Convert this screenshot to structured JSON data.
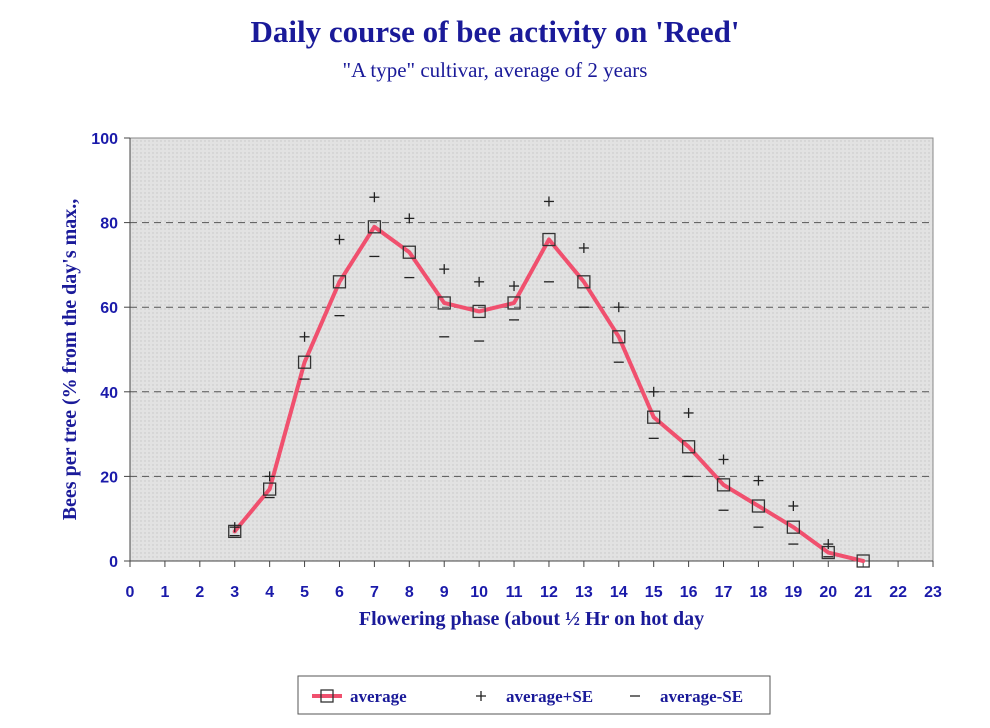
{
  "chart_data": {
    "type": "line",
    "title": "Daily course of bee activity on 'Reed'",
    "subtitle": "\"A type\" cultivar, average of 2 years",
    "xlabel": "Flowering phase (about ½ Hr on hot day",
    "ylabel": "Bees per tree (% from the day's max.,",
    "xlim": [
      0,
      23
    ],
    "ylim": [
      0,
      100
    ],
    "x_ticks": [
      0,
      1,
      2,
      3,
      4,
      5,
      6,
      7,
      8,
      9,
      10,
      11,
      12,
      13,
      14,
      15,
      16,
      17,
      18,
      19,
      20,
      21,
      22,
      23
    ],
    "y_ticks": [
      0,
      20,
      40,
      60,
      80,
      100
    ],
    "grid": "horizontal dashed",
    "legend_position": "bottom",
    "x": [
      3,
      4,
      5,
      6,
      7,
      8,
      9,
      10,
      11,
      12,
      13,
      14,
      15,
      16,
      17,
      18,
      19,
      20,
      21
    ],
    "series": [
      {
        "name": "average",
        "style": "line-square",
        "color": "#f0506e",
        "values": [
          7,
          17,
          47,
          66,
          79,
          73,
          61,
          59,
          61,
          76,
          66,
          53,
          34,
          27,
          18,
          13,
          8,
          2,
          0
        ]
      },
      {
        "name": "average+SE",
        "style": "plus",
        "color": "#222222",
        "values": [
          8,
          20,
          53,
          76,
          86,
          81,
          69,
          66,
          65,
          85,
          74,
          60,
          40,
          35,
          24,
          19,
          13,
          4,
          null
        ]
      },
      {
        "name": "average-SE",
        "style": "dash",
        "color": "#222222",
        "values": [
          6,
          15,
          43,
          58,
          72,
          67,
          53,
          52,
          57,
          66,
          60,
          47,
          29,
          20,
          12,
          8,
          4,
          1,
          null
        ]
      }
    ]
  }
}
